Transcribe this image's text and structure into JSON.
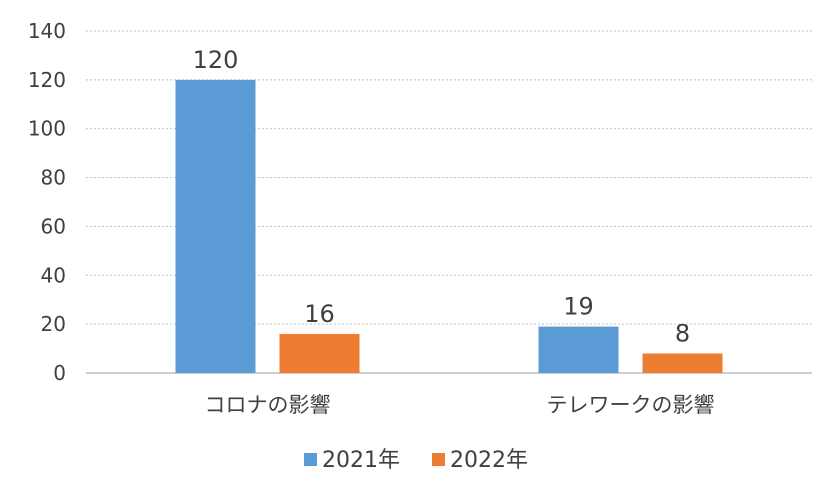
{
  "chart_data": {
    "type": "bar",
    "title": "",
    "xlabel": "",
    "ylabel": "",
    "categories": [
      "コロナの影響",
      "テレワークの影響"
    ],
    "series": [
      {
        "name": "2021年",
        "values": [
          120,
          19
        ],
        "color": "#5b9bd5"
      },
      {
        "name": "2022年",
        "values": [
          16,
          8
        ],
        "color": "#ed7d31"
      }
    ],
    "ylim": [
      0,
      140
    ],
    "yticks": [
      0,
      20,
      40,
      60,
      80,
      100,
      120,
      140
    ],
    "grid": true,
    "legend": "bottom",
    "data_labels": true
  }
}
